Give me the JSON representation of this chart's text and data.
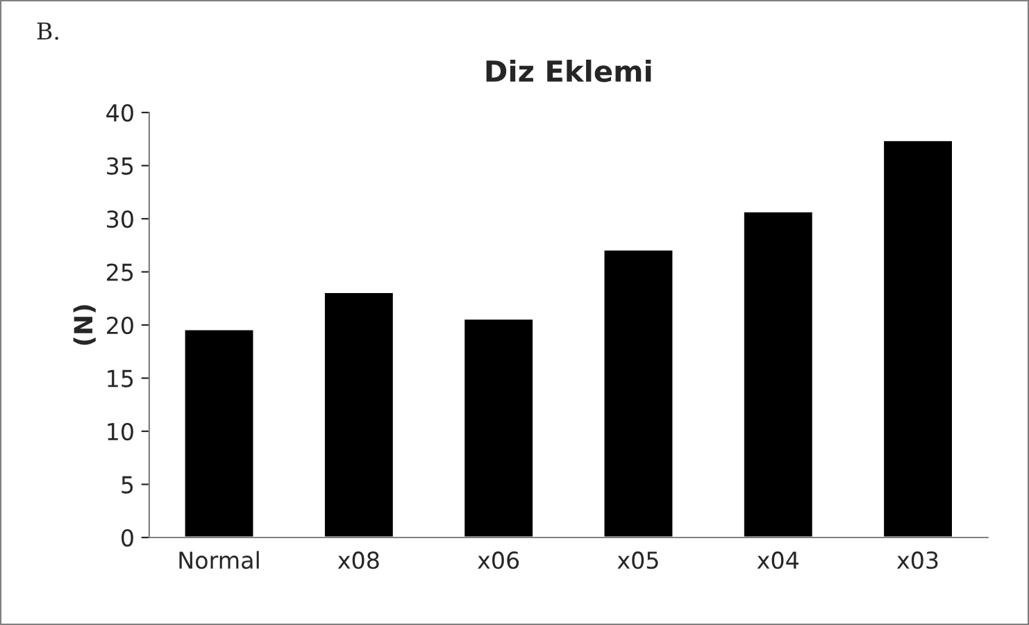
{
  "chart_data": {
    "type": "bar",
    "title": "Diz Eklemi",
    "ylabel": "(N)",
    "annotations": [
      "B."
    ],
    "categories": [
      "Normal",
      "x08",
      "x06",
      "x05",
      "x04",
      "x03"
    ],
    "values": [
      19.6,
      23.1,
      20.6,
      27.1,
      30.7,
      37.4
    ],
    "color": "#000000",
    "ylim": [
      0,
      40
    ],
    "yticks": [
      0,
      5,
      10,
      15,
      20,
      25,
      30,
      35,
      40
    ],
    "grid": false,
    "legend": false
  }
}
